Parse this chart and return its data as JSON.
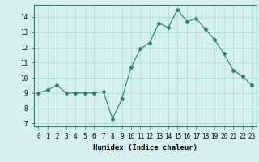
{
  "x": [
    0,
    1,
    2,
    3,
    4,
    5,
    6,
    7,
    8,
    9,
    10,
    11,
    12,
    13,
    14,
    15,
    16,
    17,
    18,
    19,
    20,
    21,
    22,
    23
  ],
  "y": [
    9.0,
    9.2,
    9.5,
    9.0,
    9.0,
    9.0,
    9.0,
    9.1,
    7.3,
    8.6,
    10.7,
    11.9,
    12.3,
    13.6,
    13.3,
    14.5,
    13.7,
    13.9,
    13.2,
    12.5,
    11.6,
    10.5,
    10.1,
    9.5
  ],
  "line_color": "#2e7d6e",
  "marker": "D",
  "marker_size": 2.5,
  "background_color": "#d6f0f0",
  "grid_color": "#aadddd",
  "xlabel": "Humidex (Indice chaleur)",
  "xlim": [
    -0.5,
    23.5
  ],
  "ylim": [
    6.8,
    14.8
  ],
  "yticks": [
    7,
    8,
    9,
    10,
    11,
    12,
    13,
    14
  ],
  "xticks": [
    0,
    1,
    2,
    3,
    4,
    5,
    6,
    7,
    8,
    9,
    10,
    11,
    12,
    13,
    14,
    15,
    16,
    17,
    18,
    19,
    20,
    21,
    22,
    23
  ],
  "label_fontsize": 6.5,
  "tick_fontsize": 5.5
}
